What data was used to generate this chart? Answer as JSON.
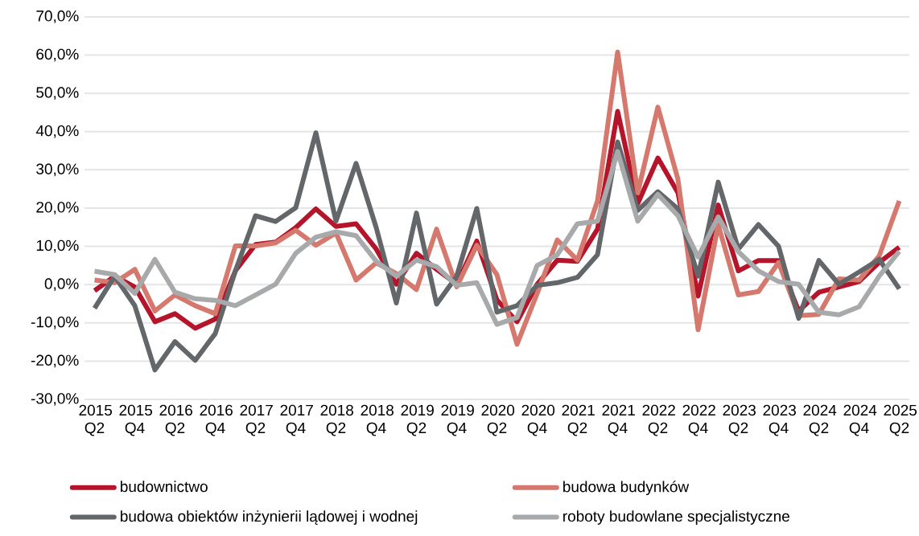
{
  "chart_data": {
    "type": "line",
    "categories": [
      "2015 Q2",
      null,
      "2015 Q4",
      null,
      "2016 Q2",
      null,
      "2016 Q4",
      null,
      "2017 Q2",
      null,
      "2017 Q4",
      null,
      "2018 Q2",
      null,
      "2018 Q4",
      null,
      "2019 Q2",
      null,
      "2019 Q4",
      null,
      "2020 Q2",
      null,
      "2020 Q4",
      null,
      "2021 Q2",
      null,
      "2021 Q4",
      null,
      "2022 Q2",
      null,
      "2022 Q4",
      null,
      "2023 Q2",
      null,
      "2023 Q4",
      null,
      "2024 Q2",
      null,
      "2024 Q4",
      null,
      "2025 Q2"
    ],
    "series": [
      {
        "name": "budownictwo",
        "color": "#b5152b",
        "values": [
          -1.6,
          2.2,
          -0.6,
          -9.7,
          -7.6,
          -11.4,
          -9.0,
          3.6,
          10.5,
          11.1,
          14.9,
          19.8,
          15.2,
          15.9,
          9.3,
          0.1,
          8.2,
          4.0,
          0.1,
          11.4,
          -4.0,
          -9.7,
          0.1,
          6.4,
          6.1,
          14.5,
          45.3,
          21.2,
          33.1,
          24.0,
          -3.0,
          20.8,
          3.6,
          6.3,
          6.3,
          -6.9,
          -2.0,
          -0.6,
          0.8,
          5.8,
          9.8
        ]
      },
      {
        "name": "budowa budynków",
        "color": "#d5786e",
        "values": [
          1.2,
          0.5,
          4.0,
          -6.9,
          -2.7,
          -5.5,
          -7.6,
          10.1,
          10.1,
          10.9,
          14.2,
          10.3,
          13.5,
          1.2,
          5.7,
          2.9,
          -1.3,
          14.5,
          -0.6,
          10.3,
          2.6,
          -15.6,
          -2.3,
          11.7,
          6.4,
          21.9,
          60.8,
          24.0,
          46.4,
          27.5,
          -11.8,
          15.6,
          -2.7,
          -1.8,
          5.8,
          -8.1,
          -7.8,
          1.5,
          1.2,
          7.5,
          21.9
        ]
      },
      {
        "name": "budowa obiektów inżynierii lądowej i wodnej",
        "color": "#63676a",
        "values": [
          -6.2,
          2.2,
          -5.5,
          -22.3,
          -14.9,
          -19.8,
          -12.8,
          3.6,
          18.0,
          16.5,
          20.1,
          39.7,
          16.6,
          31.7,
          14.9,
          -4.8,
          18.7,
          -5.1,
          2.2,
          19.9,
          -7.2,
          -5.5,
          -0.2,
          0.5,
          1.9,
          7.8,
          37.3,
          19.4,
          24.3,
          19.8,
          2.2,
          26.8,
          9.3,
          15.7,
          10.0,
          -8.8,
          6.3,
          0.1,
          3.3,
          6.6,
          -1.1
        ]
      },
      {
        "name": "roboty budowlane specjalistyczne",
        "color": "#a7a9ab",
        "values": [
          3.5,
          2.6,
          -2.3,
          6.6,
          -2.0,
          -3.7,
          -4.1,
          -5.5,
          -2.7,
          0.1,
          8.2,
          12.4,
          13.8,
          12.8,
          6.1,
          2.2,
          6.4,
          4.7,
          -0.2,
          0.5,
          -10.4,
          -8.6,
          5.0,
          7.8,
          15.9,
          16.6,
          34.8,
          16.6,
          23.6,
          18.0,
          7.2,
          17.7,
          8.6,
          3.6,
          0.8,
          0.1,
          -7.2,
          -7.9,
          -5.8,
          2.2,
          8.7
        ]
      }
    ],
    "ylim": [
      -30,
      70
    ],
    "yticks": [
      {
        "value": -30,
        "label": "-30,0%"
      },
      {
        "value": -20,
        "label": "-20,0%"
      },
      {
        "value": -10,
        "label": "-10,0%"
      },
      {
        "value": 0,
        "label": "0,0%"
      },
      {
        "value": 10,
        "label": "10,0%"
      },
      {
        "value": 20,
        "label": "20,0%"
      },
      {
        "value": 30,
        "label": "30,0%"
      },
      {
        "value": 40,
        "label": "40,0%"
      },
      {
        "value": 50,
        "label": "50,0%"
      },
      {
        "value": 60,
        "label": "60,0%"
      },
      {
        "value": 70,
        "label": "70,0%"
      }
    ],
    "grid": "y",
    "legend": "bottom",
    "marker": "none",
    "line_style": "solid"
  }
}
